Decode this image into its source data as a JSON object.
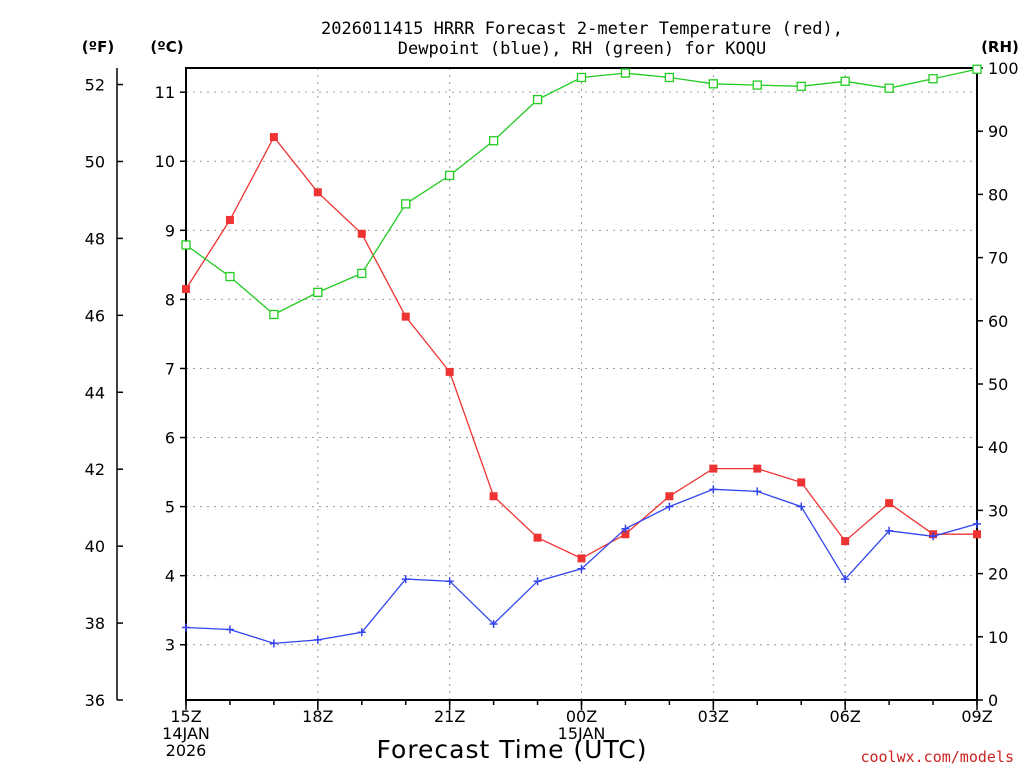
{
  "chart_data": {
    "type": "line",
    "title_line1": "2026011415 HRRR Forecast 2-meter Temperature (red),",
    "title_line2": "Dewpoint (blue), RH (green) for KOQU",
    "xlabel": "Forecast Time (UTC)",
    "credit": "coolwx.com/models",
    "unit_f": "(ºF)",
    "unit_c": "(ºC)",
    "unit_rh": "(RH)",
    "x_hours": [
      0,
      1,
      2,
      3,
      4,
      5,
      6,
      7,
      8,
      9,
      10,
      11,
      12,
      13,
      14,
      15,
      16,
      17,
      18
    ],
    "x_ticks": [
      {
        "hour": 0,
        "lines": [
          "15Z",
          "14JAN",
          "2026"
        ]
      },
      {
        "hour": 3,
        "lines": [
          "18Z"
        ]
      },
      {
        "hour": 6,
        "lines": [
          "21Z"
        ]
      },
      {
        "hour": 9,
        "lines": [
          "00Z",
          "15JAN"
        ]
      },
      {
        "hour": 12,
        "lines": [
          "03Z"
        ]
      },
      {
        "hour": 15,
        "lines": [
          "06Z"
        ]
      },
      {
        "hour": 18,
        "lines": [
          "09Z"
        ]
      }
    ],
    "y_celsius": {
      "range": [
        2.2,
        11.35
      ],
      "ticks": [
        3,
        4,
        5,
        6,
        7,
        8,
        9,
        10,
        11
      ]
    },
    "y_fahrenheit": {
      "range": [
        36,
        52.43
      ],
      "ticks": [
        36,
        38,
        40,
        42,
        44,
        46,
        48,
        50,
        52
      ]
    },
    "y_rh": {
      "range": [
        0,
        100
      ],
      "ticks": [
        0,
        10,
        20,
        30,
        40,
        50,
        60,
        70,
        80,
        90,
        100
      ]
    },
    "series": [
      {
        "name": "Temperature",
        "unit": "°C",
        "color": "#ee3333",
        "marker": "filled-square",
        "values": [
          8.15,
          9.15,
          10.35,
          9.55,
          8.95,
          7.75,
          6.95,
          5.15,
          4.55,
          4.25,
          4.6,
          5.15,
          5.55,
          5.55,
          5.35,
          4.5,
          5.05,
          4.6,
          4.6
        ]
      },
      {
        "name": "Dewpoint",
        "unit": "°C",
        "color": "#3344ee",
        "marker": "plus",
        "values": [
          3.25,
          3.22,
          3.02,
          3.07,
          3.18,
          3.95,
          3.92,
          3.3,
          3.92,
          4.1,
          4.68,
          5.0,
          5.25,
          5.22,
          5.0,
          3.95,
          4.65,
          4.57,
          4.75
        ]
      },
      {
        "name": "RH",
        "unit": "%",
        "color": "#22cc22",
        "marker": "open-square",
        "values": [
          72,
          67,
          61,
          64.5,
          67.5,
          78.5,
          83,
          88.5,
          95,
          98.5,
          99.2,
          98.5,
          97.5,
          97.3,
          97.1,
          97.9,
          96.8,
          98.3,
          99.8
        ]
      }
    ]
  }
}
